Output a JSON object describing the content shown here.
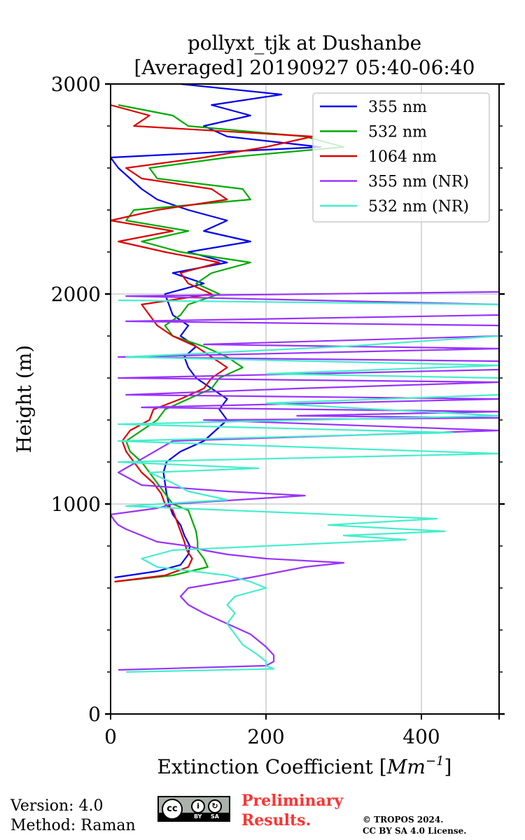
{
  "chart_data": {
    "type": "line",
    "title_line1": "pollyxt_tjk at Dushanbe",
    "title_line2": "[Averaged] 20190927 05:40-06:40",
    "xlabel": "Extinction Coefficient [",
    "xlabel_unit_base": "Mm",
    "xlabel_unit_exp": "−1",
    "xlabel_close": "]",
    "ylabel": "Height (m)",
    "xlim": [
      0,
      500
    ],
    "ylim": [
      0,
      3000
    ],
    "xticks": [
      0,
      200,
      400
    ],
    "yticks": [
      0,
      1000,
      2000,
      3000
    ],
    "xtick_labels": [
      "0",
      "200",
      "400"
    ],
    "ytick_labels": [
      "0",
      "1000",
      "2000",
      "3000"
    ],
    "grid": true,
    "legend_position": "top-right",
    "series": [
      {
        "name": "355 nm",
        "color": "#0000ee",
        "h": [
          650,
          680,
          710,
          760,
          800,
          850,
          900,
          950,
          1000,
          1050,
          1100,
          1150,
          1200,
          1250,
          1300,
          1350,
          1400,
          1450,
          1500,
          1550,
          1600,
          1650,
          1700,
          1750,
          1800,
          1850,
          1900,
          1950,
          2000,
          2050,
          2100,
          2150,
          2200,
          2250,
          2300,
          2350,
          2400,
          2450,
          2500,
          2550,
          2600,
          2650,
          2700,
          2750,
          2800,
          2850,
          2900,
          2950,
          3000
        ],
        "v": [
          5,
          60,
          90,
          100,
          102,
          95,
          90,
          80,
          75,
          72,
          70,
          68,
          72,
          90,
          120,
          135,
          150,
          140,
          150,
          130,
          110,
          100,
          95,
          110,
          90,
          100,
          80,
          75,
          70,
          120,
          80,
          150,
          100,
          180,
          120,
          150,
          100,
          60,
          40,
          25,
          10,
          0,
          270,
          150,
          120,
          180,
          130,
          220,
          90
        ]
      },
      {
        "name": "532 nm",
        "color": "#00aa00",
        "h": [
          630,
          660,
          700,
          740,
          780,
          820,
          870,
          920,
          970,
          1000,
          1050,
          1100,
          1150,
          1200,
          1250,
          1300,
          1350,
          1400,
          1450,
          1500,
          1550,
          1600,
          1650,
          1700,
          1750,
          1800,
          1850,
          1900,
          1950,
          2000,
          2050,
          2100,
          2150,
          2200,
          2250,
          2300,
          2350,
          2400,
          2450,
          2500,
          2550,
          2600,
          2650,
          2700,
          2750,
          2800,
          2850,
          2900
        ],
        "v": [
          5,
          80,
          125,
          120,
          112,
          112,
          110,
          105,
          100,
          80,
          70,
          60,
          50,
          40,
          25,
          20,
          40,
          60,
          70,
          100,
          130,
          140,
          170,
          150,
          120,
          80,
          70,
          90,
          100,
          140,
          110,
          130,
          180,
          90,
          40,
          100,
          20,
          30,
          180,
          170,
          60,
          50,
          150,
          300,
          250,
          100,
          80,
          10
        ]
      },
      {
        "name": "1064 nm",
        "color": "#dd0000",
        "h": [
          630,
          660,
          700,
          740,
          780,
          820,
          870,
          920,
          970,
          1000,
          1050,
          1100,
          1150,
          1200,
          1250,
          1300,
          1350,
          1400,
          1450,
          1500,
          1550,
          1600,
          1650,
          1700,
          1750,
          1800,
          1850,
          1900,
          1950,
          2000,
          2050,
          2100,
          2150,
          2200,
          2250,
          2300,
          2350,
          2400,
          2450,
          2500,
          2550,
          2600,
          2650,
          2700,
          2750,
          2800,
          2850,
          2900
        ],
        "v": [
          5,
          70,
          100,
          105,
          98,
          95,
          90,
          85,
          80,
          70,
          65,
          55,
          40,
          30,
          20,
          15,
          25,
          50,
          55,
          90,
          120,
          130,
          150,
          130,
          110,
          80,
          60,
          50,
          40,
          130,
          100,
          90,
          140,
          70,
          10,
          80,
          0,
          60,
          150,
          130,
          40,
          20,
          120,
          200,
          260,
          30,
          50,
          0
        ]
      },
      {
        "name": "355 nm (NR)",
        "color": "#9933ff",
        "h": [
          210,
          230,
          250,
          280,
          320,
          380,
          430,
          480,
          520,
          560,
          600,
          650,
          700,
          720,
          740,
          760,
          780,
          800,
          820,
          850,
          880,
          900,
          920,
          950,
          980,
          1000,
          1040,
          1060,
          1090,
          1150,
          1300,
          1350,
          1400,
          1410,
          1420,
          1440,
          1460,
          1500,
          1520,
          1550,
          1580,
          1600,
          1640,
          1680,
          1700,
          1740,
          1760,
          1800,
          1850,
          1870,
          1900,
          1950,
          1990,
          2010,
          2020,
          2380
        ],
        "v": [
          10,
          200,
          210,
          210,
          200,
          180,
          150,
          120,
          100,
          90,
          100,
          180,
          250,
          300,
          200,
          150,
          120,
          100,
          60,
          40,
          20,
          10,
          5,
          0,
          60,
          80,
          250,
          150,
          40,
          10,
          80,
          500,
          120,
          500,
          240,
          500,
          40,
          500,
          20,
          240,
          500,
          10,
          500,
          500,
          10,
          500,
          120,
          500,
          500,
          20,
          500,
          500,
          20,
          500,
          500,
          500
        ]
      },
      {
        "name": "532 nm (NR)",
        "color": "#44eecc",
        "h": [
          200,
          215,
          230,
          250,
          280,
          330,
          380,
          430,
          480,
          520,
          560,
          600,
          630,
          660,
          700,
          740,
          780,
          810,
          830,
          850,
          870,
          900,
          930,
          960,
          990,
          1020,
          1060,
          1100,
          1150,
          1170,
          1200,
          1240,
          1300,
          1340,
          1380,
          1420,
          1480,
          1520,
          1600,
          1620,
          1660,
          1700,
          1750,
          1800,
          1850,
          1900,
          1950,
          1970
        ],
        "v": [
          20,
          210,
          200,
          200,
          190,
          170,
          160,
          150,
          160,
          150,
          160,
          200,
          180,
          150,
          60,
          40,
          80,
          260,
          380,
          300,
          430,
          280,
          420,
          220,
          20,
          150,
          100,
          80,
          50,
          190,
          10,
          500,
          10,
          440,
          10,
          500,
          200,
          500,
          500,
          200,
          500,
          20,
          300,
          500,
          500,
          500,
          500,
          10
        ]
      }
    ]
  },
  "footer": {
    "version": "Version: 4.0",
    "method": "Method: Raman",
    "preliminary_line1": "Preliminary",
    "preliminary_line2": "Results.",
    "copyright_line1": "© TROPOS 2024.",
    "copyright_line2": "CC BY SA 4.0 License.",
    "cc_logo_text": "cc",
    "cc_by": "BY",
    "cc_sa": "SA"
  }
}
